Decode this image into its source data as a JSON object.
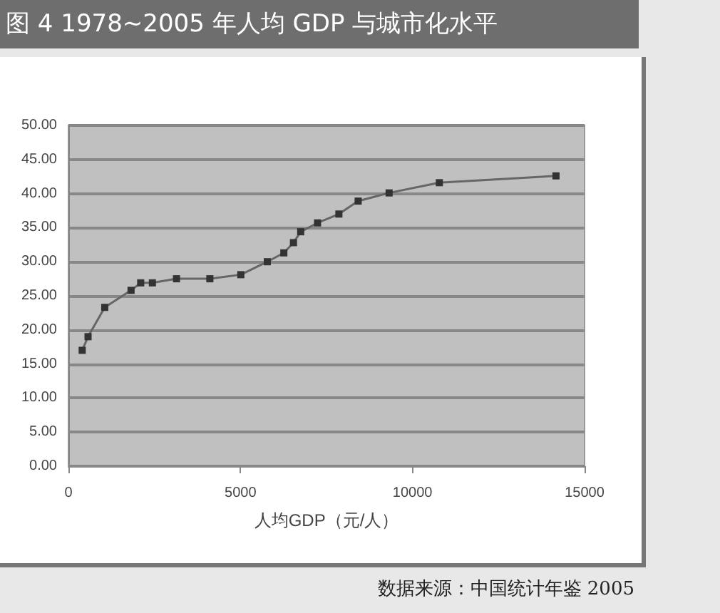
{
  "chart_data": {
    "type": "line",
    "title": "图 4 1978~2005 年人均 GDP 与城市化水平",
    "xlabel": "人均GDP（元/人）",
    "annotations": [
      "数据来源：中国统计年鉴 2005"
    ],
    "x": [
      400,
      570,
      1055,
      1820,
      2100,
      2440,
      3140,
      4110,
      5010,
      5780,
      6260,
      6540,
      6750,
      7240,
      7860,
      8420,
      9320,
      10780,
      14170
    ],
    "series": [
      {
        "color": "#333333",
        "values": [
          17,
          19,
          23.3,
          25.8,
          26.9,
          26.9,
          27.5,
          27.5,
          28.1,
          30,
          31.3,
          32.8,
          34.4,
          35.7,
          37,
          38.9,
          40.1,
          41.6,
          42.6
        ]
      }
    ],
    "xlim": [
      0,
      15000
    ],
    "xticks": [
      0,
      5000,
      10000,
      15000
    ],
    "ylim": [
      0,
      50
    ],
    "yticks": [
      {
        "value": 0,
        "label": "0.00"
      },
      {
        "value": 5,
        "label": "5.00"
      },
      {
        "value": 10,
        "label": "10.00"
      },
      {
        "value": 15,
        "label": "15.00"
      },
      {
        "value": 20,
        "label": "20.00"
      },
      {
        "value": 25,
        "label": "25.00"
      },
      {
        "value": 30,
        "label": "30.00"
      },
      {
        "value": 35,
        "label": "35.00"
      },
      {
        "value": 40,
        "label": "40.00"
      },
      {
        "value": 45,
        "label": "45.00"
      },
      {
        "value": 50,
        "label": "50.00"
      }
    ],
    "grid": "y",
    "marker": "square",
    "line_style": "solid"
  }
}
